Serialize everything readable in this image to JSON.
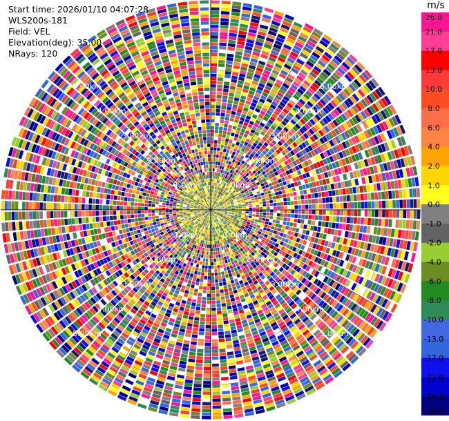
{
  "header": {
    "start_time": "Start time: 2026/01/10 04:07:28",
    "instrument": "WLS200s-181",
    "field": "Field: VEL",
    "elevation": "Elevation(deg): 35.00",
    "nrays": "NRays: 120"
  },
  "chart_data": {
    "type": "heatmap",
    "projection": "polar",
    "field": "VEL",
    "n_rays": 120,
    "range_rings_km": [
      1.0,
      2.0,
      3.0,
      4.0,
      5.0
    ],
    "ring_labels": [
      "1.0km",
      "2.00km",
      "3.00km",
      "4.00km",
      "5.00km"
    ],
    "max_range_km": 6.0,
    "grid": true,
    "azimuth_lines_deg": [
      0,
      30,
      60,
      90,
      120,
      150,
      180,
      210,
      240,
      270,
      300,
      330
    ],
    "colorbar": {
      "unit": "m/s",
      "placement": "right",
      "ticks": [
        "26.0",
        "21.0",
        "17.0",
        "13.0",
        "10.0",
        "8.0",
        "6.0",
        "4.0",
        "2.0",
        "1.0",
        "0.0",
        "-1.0",
        "-2.0",
        "-4.0",
        "-6.0",
        "-8.0",
        "-10.0",
        "-13.0",
        "-17.0",
        "-21.0",
        "-26.0",
        "-30.0"
      ],
      "colors": [
        "#ff1493",
        "#ff3f95",
        "#ff0000",
        "#ff3838",
        "#ff4c20",
        "#ff6e48",
        "#ff8444",
        "#ffa500",
        "#ffd700",
        "#ffff1e",
        "#808080",
        "#636363",
        "#9acd32",
        "#6b8e23",
        "#228b22",
        "#2e8b57",
        "#4169e1",
        "#3366dd",
        "#1010ee",
        "#0000cd",
        "#000080",
        "#191970"
      ]
    }
  }
}
